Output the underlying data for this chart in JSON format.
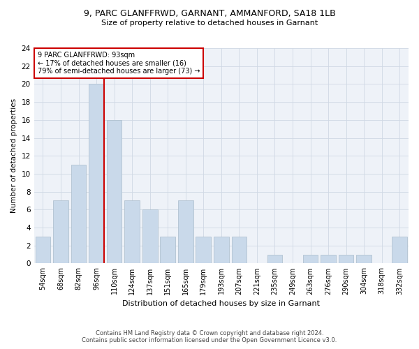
{
  "title1": "9, PARC GLANFFRWD, GARNANT, AMMANFORD, SA18 1LB",
  "title2": "Size of property relative to detached houses in Garnant",
  "xlabel": "Distribution of detached houses by size in Garnant",
  "ylabel": "Number of detached properties",
  "categories": [
    "54sqm",
    "68sqm",
    "82sqm",
    "96sqm",
    "110sqm",
    "124sqm",
    "137sqm",
    "151sqm",
    "165sqm",
    "179sqm",
    "193sqm",
    "207sqm",
    "221sqm",
    "235sqm",
    "249sqm",
    "263sqm",
    "276sqm",
    "290sqm",
    "304sqm",
    "318sqm",
    "332sqm"
  ],
  "values": [
    3,
    7,
    11,
    20,
    16,
    7,
    6,
    3,
    7,
    3,
    3,
    3,
    0,
    1,
    0,
    1,
    1,
    1,
    1,
    0,
    3
  ],
  "bar_color": "#c9d9ea",
  "bar_edge_color": "#aabccc",
  "property_index": 3,
  "property_label": "9 PARC GLANFFRWD: 93sqm",
  "annotation_line1": "← 17% of detached houses are smaller (16)",
  "annotation_line2": "79% of semi-detached houses are larger (73) →",
  "vline_color": "#cc0000",
  "annotation_edge_color": "#cc0000",
  "ylim": [
    0,
    24
  ],
  "yticks": [
    0,
    2,
    4,
    6,
    8,
    10,
    12,
    14,
    16,
    18,
    20,
    22,
    24
  ],
  "footer1": "Contains HM Land Registry data © Crown copyright and database right 2024.",
  "footer2": "Contains public sector information licensed under the Open Government Licence v3.0.",
  "bg_color": "#eef2f8",
  "grid_color": "#d0d8e4"
}
